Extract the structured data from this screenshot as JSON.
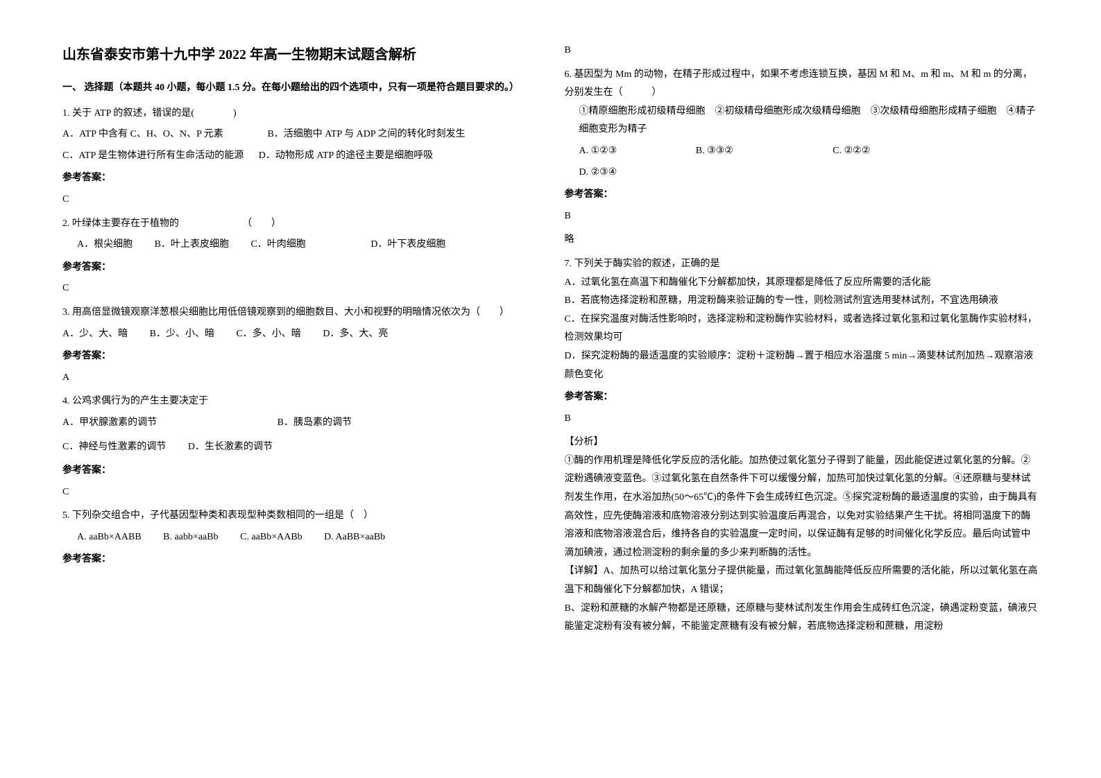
{
  "title": "山东省泰安市第十九中学 2022 年高一生物期末试题含解析",
  "section1_heading": "一、 选择题（本题共 40 小题，每小题 1.5 分。在每小题给出的四个选项中，只有一项是符合题目要求的。）",
  "answer_label": "参考答案：",
  "analysis_label": "【分析】",
  "detail_label": "【详解】",
  "omit": "略",
  "q1": {
    "stem": "1. 关于 ATP 的叙述，错误的是(　　　　)",
    "optA": "A．ATP 中含有 C、H、O、N、P 元素",
    "optB": "B．活细胞中 ATP 与 ADP 之间的转化时刻发生",
    "optC": "C．ATP 是生物体进行所有生命活动的能源",
    "optD": "D．动物形成 ATP 的途径主要是细胞呼吸",
    "ans": "C"
  },
  "q2": {
    "stem": "2. 叶绿体主要存在于植物的　　　　　　　（　　）",
    "optA": "A．根尖细胞",
    "optB": "B．叶上表皮细胞",
    "optC": "C．叶肉细胞",
    "optD": "D．叶下表皮细胞",
    "ans": "C"
  },
  "q3": {
    "stem": "3. 用高倍显微镜观察洋葱根尖细胞比用低倍镜观察到的细胞数目、大小和视野的明暗情况依次为（　　）",
    "optA": "A．少、大、暗",
    "optB": "B．少、小、暗",
    "optC": "C．多、小、暗",
    "optD": "D．多、大、亮",
    "ans": "A"
  },
  "q4": {
    "stem": "4. 公鸡求偶行为的产生主要决定于",
    "optA": "A．甲状腺激素的调节",
    "optB": "B．胰岛素的调节",
    "optC": "C．神经与性激素的调节",
    "optD": "D．生长激素的调节",
    "ans": "C"
  },
  "q5": {
    "stem": "5. 下列杂交组合中，子代基因型种类和表现型种类数相同的一组是（　）",
    "optA": "A. aaBb×AABB",
    "optB": "B. aabb×aaBb",
    "optC": "C. aaBb×AABb",
    "optD": "D. AaBB×aaBb",
    "ans": "B"
  },
  "q6": {
    "stem": "6. 基因型为 Mm 的动物，在精子形成过程中，如果不考虑连锁互换，基因 M 和 M、m 和 m、M 和 m 的分离，分别发生在（　　　）",
    "items": "①精原细胞形成初级精母细胞　②初级精母细胞形成次级精母细胞　③次级精母细胞形成精子细胞　④精子细胞变形为精子",
    "optA": "A. ①②③",
    "optB": "B. ③③②",
    "optC": "C. ②②②",
    "optD": "D. ②③④",
    "ans": "B"
  },
  "q7": {
    "stem": "7. 下列关于酶实验的叙述，正确的是",
    "optA": "A．过氧化氢在高温下和酶催化下分解都加快，其原理都是降低了反应所需要的活化能",
    "optB": "B．若底物选择淀粉和蔗糖，用淀粉酶来验证酶的专一性，则检测试剂宜选用斐林试剂，不宜选用碘液",
    "optC": "C．在探究温度对酶活性影响时，选择淀粉和淀粉酶作实验材料，或者选择过氧化氢和过氧化氢酶作实验材料，检测效果均可",
    "optD": "D．探究淀粉酶的最适温度的实验顺序：淀粉＋淀粉酶→置于相应水浴温度 5 min→滴斐林试剂加热→观察溶液颜色变化",
    "ans": "B",
    "analysis": "①酶的作用机理是降低化学反应的活化能。加热使过氧化氢分子得到了能量，因此能促进过氧化氢的分解。②淀粉遇碘液变蓝色。③过氧化氢在自然条件下可以缓慢分解，加热可加快过氧化氢的分解。④还原糖与斐林试剂发生作用，在水浴加热(50～65℃)的条件下会生成砖红色沉淀。⑤探究淀粉酶的最适温度的实验，由于酶具有高效性，应先使酶溶液和底物溶液分别达到实验温度后再混合，以免对实验结果产生干扰。将相同温度下的酶溶液和底物溶液混合后，维持各自的实验温度一定时间，以保证酶有足够的时间催化化学反应。最后向试管中滴加碘液，通过检测淀粉的剩余量的多少来判断酶的活性。",
    "detailA": "A、加热可以给过氧化氢分子提供能量，而过氧化氢酶能降低反应所需要的活化能，所以过氧化氢在高温下和酶催化下分解都加快，A 错误；",
    "detailB": "B、淀粉和蔗糖的水解产物都是还原糖，还原糖与斐林试剂发生作用会生成砖红色沉淀，碘遇淀粉变蓝，碘液只能鉴定淀粉有没有被分解，不能鉴定蔗糖有没有被分解，若底物选择淀粉和蔗糖，用淀粉"
  }
}
